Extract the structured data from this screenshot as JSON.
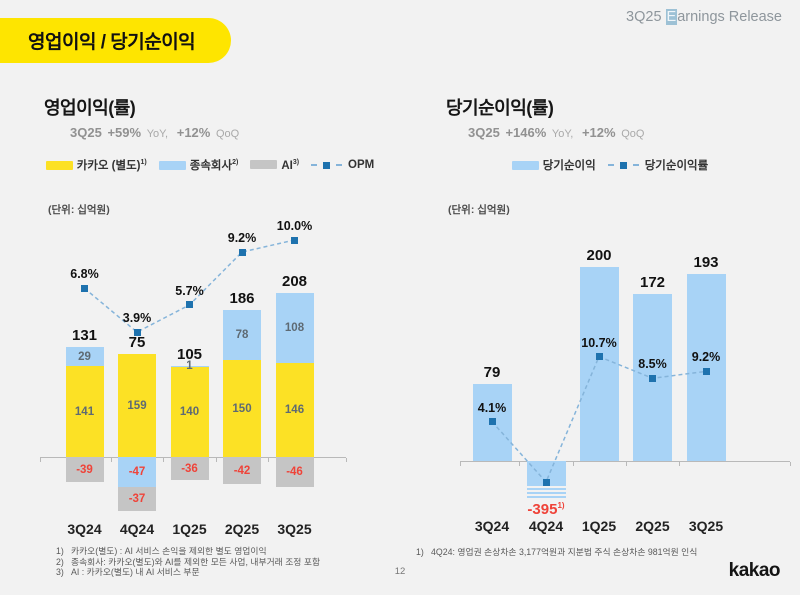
{
  "page": {
    "title": "영업이익 / 당기순이익",
    "release": {
      "prefix": "3Q25 ",
      "highlight": "E",
      "rest": "arnings Release"
    },
    "page_number": "12",
    "logo": "kakao",
    "colors": {
      "background": "#F2F2F2",
      "kakao_yellow": "#FEE500",
      "negative_red": "#EF4339",
      "axis_gray": "#B9B9B9"
    }
  },
  "chart_data": [
    {
      "type": "bar",
      "variant": "stacked-bar-with-line",
      "title": "영업이익(률)",
      "subtitle": {
        "period": "3Q25",
        "yoy_value": "+59%",
        "yoy_label": "YoY,",
        "qoq_value": "+12%",
        "qoq_label": "QoQ"
      },
      "unit": "(단위: 십억원)",
      "categories": [
        "3Q24",
        "4Q24",
        "1Q25",
        "2Q25",
        "3Q25"
      ],
      "series": [
        {
          "name": "카카오 (별도)",
          "sup": "1)",
          "color": "#FCE125",
          "values": [
            141,
            159,
            140,
            150,
            146
          ]
        },
        {
          "name": "종속회사",
          "sup": "2)",
          "color": "#A8D3F6",
          "values": [
            29,
            -47,
            1,
            78,
            108
          ]
        },
        {
          "name": "AI",
          "sup": "3)",
          "color": "#C5C5C5",
          "values": [
            -39,
            -37,
            -36,
            -42,
            -46
          ]
        }
      ],
      "show_segment_labels": true,
      "totals": [
        "131",
        "75",
        "105",
        "186",
        "208"
      ],
      "line_series": {
        "name": "OPM",
        "values": [
          6.8,
          3.9,
          5.7,
          9.2,
          10.0
        ],
        "labels": [
          "6.8%",
          "3.9%",
          "5.7%",
          "9.2%",
          "10.0%"
        ],
        "marker_color": "#1E72AE",
        "line_color": "#85B4DA"
      },
      "footnote_numbers": [
        "1)",
        "2)",
        "3)"
      ],
      "footnotes": [
        "카카오(별도) : AI 서비스 손익을 제외한 별도 영업이익",
        "종속회사: 카카오(별도)와 AI를 제외한 모든 사업, 내부거래 조정 포함",
        "AI : 카카오(별도) 내 AI 서비스 부문"
      ]
    },
    {
      "type": "bar",
      "variant": "bar-with-line",
      "title": "당기순이익(률)",
      "subtitle": {
        "period": "3Q25",
        "yoy_value": "+146%",
        "yoy_label": "YoY,",
        "qoq_value": "+12%",
        "qoq_label": "QoQ"
      },
      "unit": "(단위: 십억원)",
      "categories": [
        "3Q24",
        "4Q24",
        "1Q25",
        "2Q25",
        "3Q25"
      ],
      "series": [
        {
          "name": "당기순이익",
          "sup": "",
          "color": "#A8D3F6",
          "values": [
            79,
            -395,
            200,
            172,
            193
          ]
        }
      ],
      "show_segment_labels": false,
      "totals": [
        "79",
        "-395",
        "200",
        "172",
        "193"
      ],
      "total_sups": [
        "",
        "1)",
        "",
        "",
        ""
      ],
      "truncated_bar_indexes": [
        1
      ],
      "line_series": {
        "name": "당기순이익률",
        "values": [
          4.1,
          null,
          10.7,
          8.5,
          9.2
        ],
        "labels": [
          "4.1%",
          "",
          "10.7%",
          "8.5%",
          "9.2%"
        ],
        "marker_color": "#1E72AE",
        "line_color": "#85B4DA"
      },
      "footnote_numbers": [
        "1)"
      ],
      "footnotes": [
        "4Q24: 영업권 손상차손 3,177억원과 지분법 주식 손상차손 981억원 인식"
      ]
    }
  ]
}
